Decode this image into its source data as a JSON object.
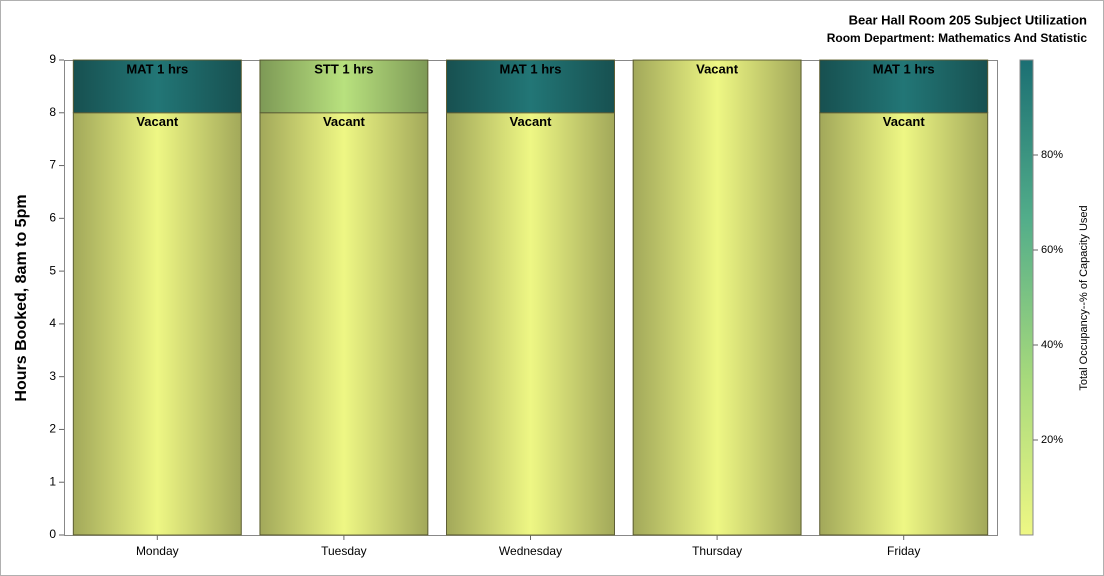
{
  "chart_data": {
    "type": "stacked_bar",
    "title": "Bear Hall Room 205 Subject Utilization",
    "subtitle": "Room Department:  Mathematics And Statistic",
    "y_label": "Hours Booked, 8am to 5pm",
    "categories": [
      "Monday",
      "Tuesday",
      "Wednesday",
      "Thursday",
      "Friday"
    ],
    "series": [
      {
        "values": [
          8,
          8,
          8,
          9,
          8
        ],
        "value_labels": [
          "Vacant",
          "Vacant",
          "Vacant",
          "Vacant",
          "Vacant"
        ],
        "occupancy": [
          0,
          0,
          0,
          0,
          0
        ]
      },
      {
        "values": [
          1,
          1,
          1,
          null,
          1
        ],
        "value_labels": [
          "MAT 1 hrs",
          "STT 1 hrs",
          "MAT 1 hrs",
          null,
          "MAT 1 hrs"
        ],
        "occupancy": [
          96,
          25,
          96,
          null,
          96
        ]
      }
    ],
    "ylim": [
      0,
      9
    ],
    "yticks": [
      0,
      1,
      2,
      3,
      4,
      5,
      6,
      7,
      8,
      9
    ],
    "colorbar": {
      "label": "Total Occupancy--% of Capacity Used",
      "clim": [
        0,
        100
      ],
      "ticks": [
        {
          "value": 20,
          "label": "20%"
        },
        {
          "value": 40,
          "label": "40%"
        },
        {
          "value": 60,
          "label": "60%"
        },
        {
          "value": 80,
          "label": "80%"
        }
      ],
      "colormap": [
        "#eef784",
        "#a6d97c",
        "#52ad8a",
        "#1b6f73"
      ]
    }
  }
}
